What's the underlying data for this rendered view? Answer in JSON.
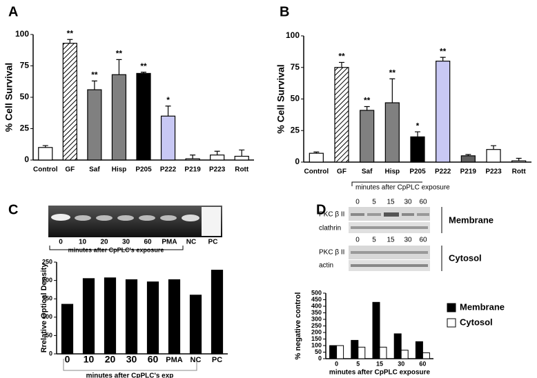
{
  "chart_data": [
    {
      "type": "bar",
      "panel": "A",
      "ylabel": "% Cell Survival",
      "categories": [
        "Control",
        "GF",
        "Saf",
        "Hisp",
        "P205",
        "P222",
        "P219",
        "P223",
        "Rott"
      ],
      "values": [
        10,
        93,
        56,
        68,
        69,
        35,
        1,
        4,
        3
      ],
      "error_bars": [
        1.5,
        3,
        7,
        12,
        1,
        8,
        3,
        3,
        5
      ],
      "significance": [
        null,
        "**",
        "**",
        "**",
        "**",
        "*",
        null,
        null,
        null
      ],
      "colors": [
        "#ffffff",
        "#ffffff",
        "#808080",
        "#808080",
        "#000000",
        "#c8c8f4",
        "#ffffff",
        "#ffffff",
        "#ffffff"
      ],
      "hatch": [
        false,
        true,
        false,
        false,
        false,
        false,
        false,
        false,
        false
      ],
      "ylim": [
        0,
        100
      ],
      "yticks": [
        0,
        25,
        50,
        75,
        100
      ]
    },
    {
      "type": "bar",
      "panel": "B",
      "ylabel": "% Cell Survival",
      "categories": [
        "Control",
        "GF",
        "Saf",
        "Hisp",
        "P205",
        "P222",
        "P219",
        "P223",
        "Rott"
      ],
      "values": [
        7,
        75,
        41,
        47,
        20,
        80,
        5,
        10,
        1
      ],
      "error_bars": [
        1,
        4,
        3,
        19,
        4,
        3,
        1,
        3,
        2
      ],
      "significance": [
        null,
        "**",
        "**",
        "**",
        "*",
        "**",
        null,
        null,
        null
      ],
      "colors": [
        "#ffffff",
        "#ffffff",
        "#808080",
        "#808080",
        "#000000",
        "#c8c8f4",
        "#606060",
        "#ffffff",
        "#ffffff"
      ],
      "hatch": [
        false,
        true,
        false,
        false,
        false,
        false,
        false,
        false,
        false
      ],
      "ylim": [
        0,
        100
      ],
      "yticks": [
        0,
        25,
        50,
        75,
        100
      ]
    },
    {
      "type": "bar",
      "panel": "C",
      "ylabel": "Rrelative Optical Density",
      "xlabel": "minutes after CpPLC's exp",
      "gel_lanes": [
        "0",
        "10",
        "20",
        "30",
        "60",
        "PMA",
        "NC",
        "PC"
      ],
      "gel_caption": "minutes after CpPLC's exposure",
      "categories": [
        "0",
        "10",
        "20",
        "30",
        "60",
        "PMA",
        "NC",
        "PC"
      ],
      "values": [
        135,
        205,
        207,
        202,
        196,
        202,
        160,
        228
      ],
      "color": "#000000",
      "ylim": [
        0,
        250
      ],
      "yticks": [
        0,
        50,
        100,
        150,
        200,
        250
      ]
    },
    {
      "type": "grouped_bar",
      "panel": "D",
      "ylabel": "% negative control",
      "xlabel": "minutes after CpPLC exposure",
      "blot": {
        "caption": "minutes after CpPLC exposure",
        "lanes_top": [
          "0",
          "5",
          "15",
          "30",
          "60"
        ],
        "lanes_bottom": [
          "0",
          "5",
          "15",
          "30",
          "60"
        ],
        "rows": [
          "PKC β II",
          "clathrin",
          "PKC β II",
          "actin"
        ],
        "groups": [
          "Membrane",
          "Cytosol"
        ]
      },
      "categories": [
        "0",
        "5",
        "15",
        "30",
        "60"
      ],
      "series": [
        {
          "name": "Membrane",
          "color": "#000000",
          "values": [
            100,
            140,
            430,
            190,
            130
          ]
        },
        {
          "name": "Cytosol",
          "color": "#ffffff",
          "values": [
            100,
            88,
            88,
            65,
            45
          ]
        }
      ],
      "ylim": [
        0,
        500
      ],
      "yticks": [
        0,
        50,
        100,
        150,
        200,
        250,
        300,
        350,
        400,
        450,
        500
      ]
    }
  ]
}
